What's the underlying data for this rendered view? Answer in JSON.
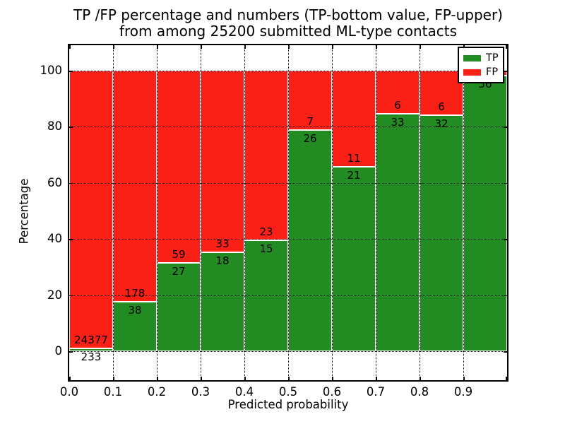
{
  "figure": {
    "title_line1": "TP /FP percentage and numbers (TP-bottom value, FP-upper)",
    "title_line2": "from among 25200 submitted ML-type contacts"
  },
  "chart_data": {
    "type": "bar",
    "stacked": true,
    "title": "TP /FP percentage and numbers (TP-bottom value, FP-upper) from among 25200 submitted ML-type contacts",
    "xlabel": "Predicted probability",
    "ylabel": "Percentage",
    "xlim": [
      0.0,
      1.0
    ],
    "ylim": [
      -11,
      110
    ],
    "bar_total_pct": 100,
    "x_tick_labels": [
      "0.0",
      "0.1",
      "0.2",
      "0.3",
      "0.4",
      "0.5",
      "0.6",
      "0.7",
      "0.8",
      "0.9"
    ],
    "y_ticks": [
      0,
      20,
      40,
      60,
      80,
      100
    ],
    "y_tick_labels": [
      "0",
      "20",
      "40",
      "60",
      "80",
      "100"
    ],
    "grid": "dotted-black",
    "legend": {
      "position": "upper-right",
      "entries": [
        {
          "label": "TP",
          "color": "#228b22"
        },
        {
          "label": "FP",
          "color": "#fb2016"
        }
      ]
    },
    "bins": [
      {
        "x_range": [
          0.0,
          0.1
        ],
        "tp_count": 233,
        "fp_count": 24377,
        "tp_pct": 0.95,
        "tp_label": "233",
        "fp_label": "24377"
      },
      {
        "x_range": [
          0.1,
          0.2
        ],
        "tp_count": 38,
        "fp_count": 178,
        "tp_pct": 17.59,
        "tp_label": "38",
        "fp_label": "178"
      },
      {
        "x_range": [
          0.2,
          0.3
        ],
        "tp_count": 27,
        "fp_count": 59,
        "tp_pct": 31.4,
        "tp_label": "27",
        "fp_label": "59"
      },
      {
        "x_range": [
          0.3,
          0.4
        ],
        "tp_count": 18,
        "fp_count": 33,
        "tp_pct": 35.29,
        "tp_label": "18",
        "fp_label": "33"
      },
      {
        "x_range": [
          0.4,
          0.5
        ],
        "tp_count": 15,
        "fp_count": 23,
        "tp_pct": 39.47,
        "tp_label": "15",
        "fp_label": "23"
      },
      {
        "x_range": [
          0.5,
          0.6
        ],
        "tp_count": 26,
        "fp_count": 7,
        "tp_pct": 78.79,
        "tp_label": "26",
        "fp_label": "7"
      },
      {
        "x_range": [
          0.6,
          0.7
        ],
        "tp_count": 21,
        "fp_count": 11,
        "tp_pct": 65.63,
        "tp_label": "21",
        "fp_label": "11"
      },
      {
        "x_range": [
          0.7,
          0.8
        ],
        "tp_count": 33,
        "fp_count": 6,
        "tp_pct": 84.62,
        "tp_label": "33",
        "fp_label": "6"
      },
      {
        "x_range": [
          0.8,
          0.9
        ],
        "tp_count": 32,
        "fp_count": 6,
        "tp_pct": 84.21,
        "tp_label": "32",
        "fp_label": "6"
      },
      {
        "x_range": [
          0.9,
          1.0
        ],
        "tp_count": 56,
        "fp_count": null,
        "tp_pct": 98.2,
        "tp_label": "56",
        "fp_label": ""
      }
    ]
  },
  "colors": {
    "tp": "#228b22",
    "fp": "#fb2016",
    "grid": "#000000",
    "frame": "#000000",
    "background": "#ffffff"
  }
}
